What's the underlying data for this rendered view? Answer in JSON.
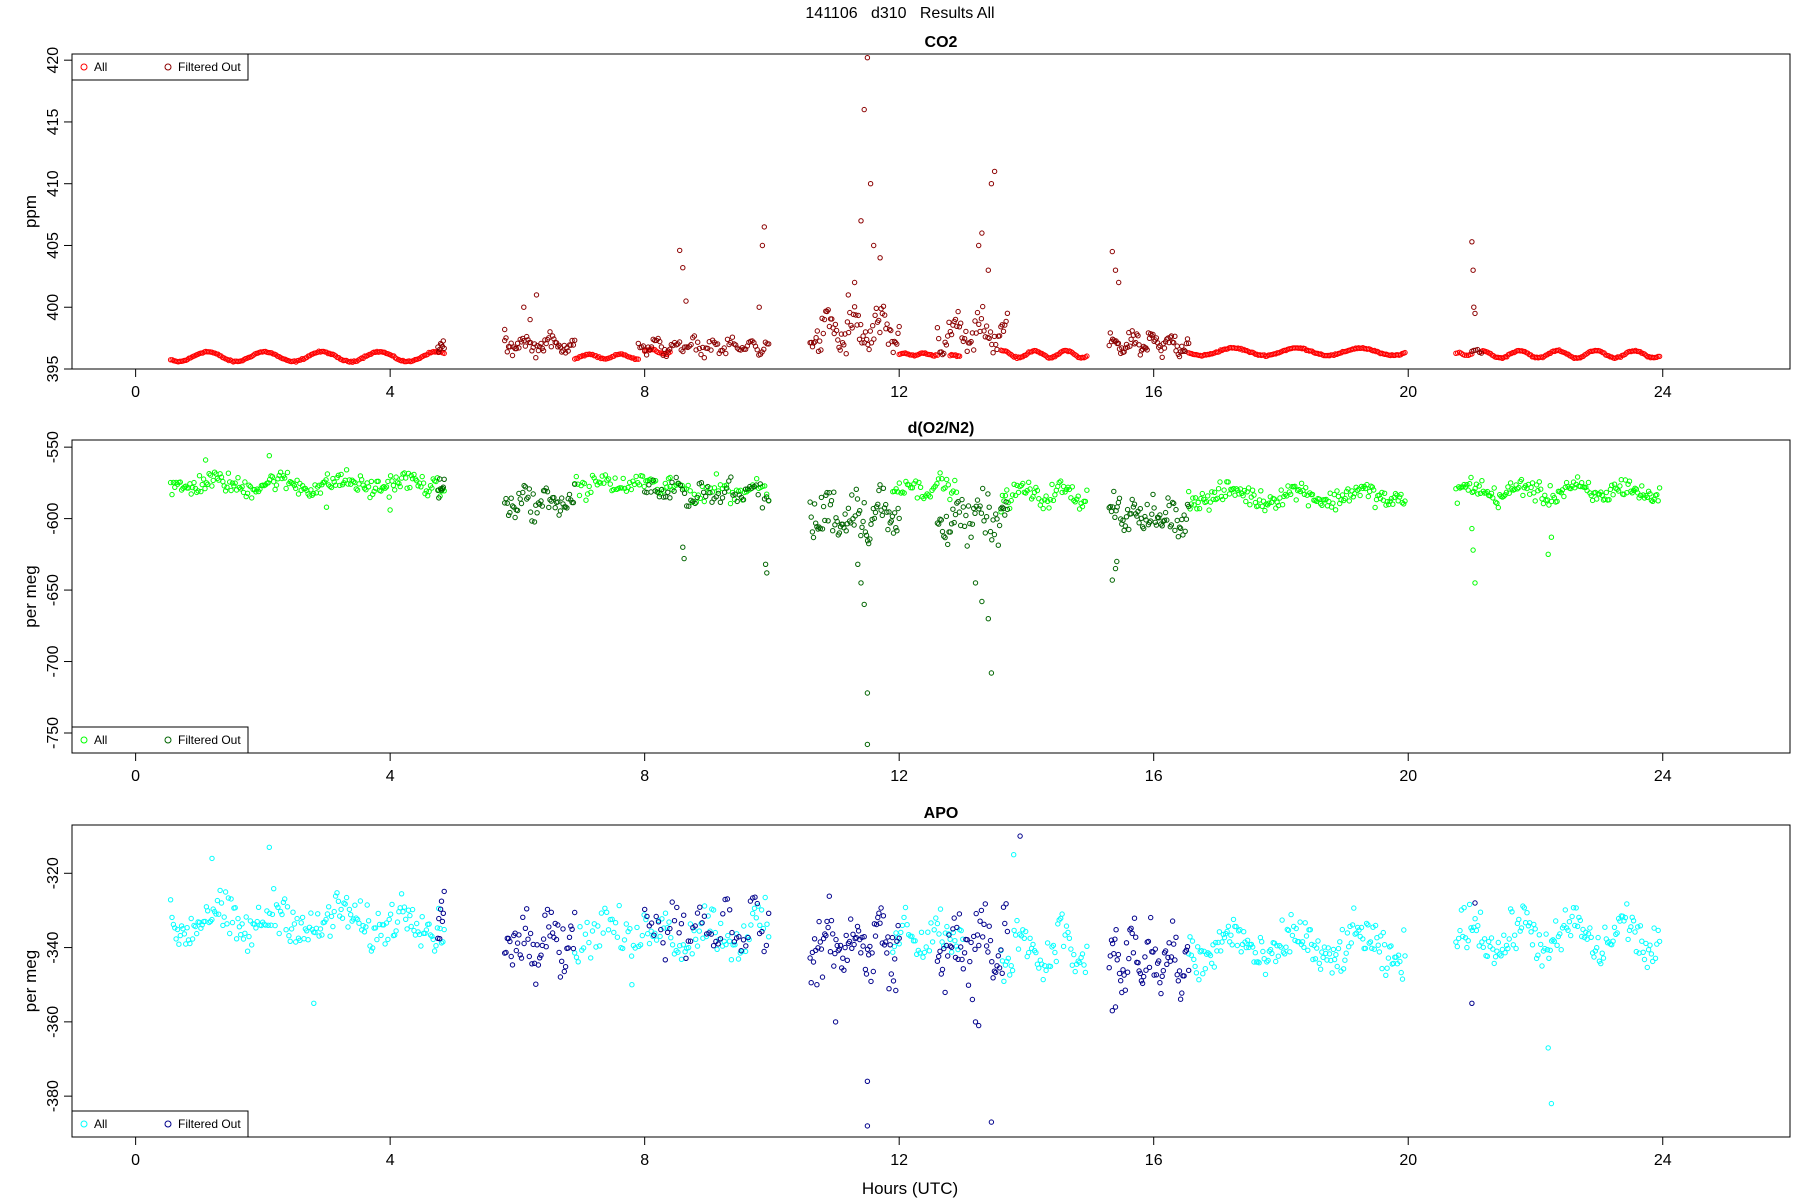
{
  "page_title": "141106   d310   Results All",
  "x_axis_label": "Hours (UTC)",
  "chart_data": [
    {
      "type": "scatter",
      "title": "CO2",
      "xlabel": "",
      "ylabel": "ppm",
      "xlim": [
        -1,
        26
      ],
      "ylim": [
        395,
        420.5
      ],
      "xticks": [
        0,
        4,
        8,
        12,
        16,
        20,
        24
      ],
      "yticks": [
        395,
        400,
        405,
        410,
        415,
        420
      ],
      "legend_position": "top-left",
      "legend": [
        "All",
        "Filtered Out"
      ],
      "series": [
        {
          "name": "All",
          "color": "#ff0000",
          "segments": [
            {
              "x0": 0.55,
              "x1": 4.85,
              "n": 180,
              "base": 396.0,
              "amp": 0.4,
              "noise": 0.05,
              "period": 0.9
            },
            {
              "x0": 6.9,
              "x1": 7.9,
              "n": 40,
              "base": 396.0,
              "amp": 0.2,
              "noise": 0.05,
              "period": 0.5
            },
            {
              "x0": 8.0,
              "x1": 8.4,
              "n": 16,
              "base": 396.4,
              "amp": 0.2,
              "noise": 0.05,
              "period": 0.4
            },
            {
              "x0": 12.0,
              "x1": 12.6,
              "n": 26,
              "base": 396.2,
              "amp": 0.1,
              "noise": 0.05,
              "period": 0.3
            },
            {
              "x0": 12.8,
              "x1": 12.95,
              "n": 8,
              "base": 396.1,
              "amp": 0.05,
              "noise": 0.05,
              "period": 0.2
            },
            {
              "x0": 13.6,
              "x1": 14.95,
              "n": 60,
              "base": 396.2,
              "amp": 0.3,
              "noise": 0.05,
              "period": 0.5
            },
            {
              "x0": 16.55,
              "x1": 19.95,
              "n": 150,
              "base": 396.4,
              "amp": 0.3,
              "noise": 0.05,
              "period": 1.0
            },
            {
              "x0": 20.75,
              "x1": 21.0,
              "n": 10,
              "base": 396.2,
              "amp": 0.1,
              "noise": 0.05,
              "period": 0.3
            },
            {
              "x0": 21.15,
              "x1": 23.95,
              "n": 120,
              "base": 396.2,
              "amp": 0.3,
              "noise": 0.05,
              "period": 0.6
            }
          ]
        },
        {
          "name": "Filtered Out",
          "color": "#8b0000",
          "segments": [
            {
              "x0": 4.75,
              "x1": 4.85,
              "n": 8,
              "base": 396.8,
              "amp": 0.2,
              "noise": 0.4,
              "period": 0.2
            },
            {
              "x0": 5.8,
              "x1": 6.9,
              "n": 55,
              "base": 397.0,
              "amp": 0.4,
              "noise": 0.5,
              "period": 0.4
            },
            {
              "x0": 7.9,
              "x1": 9.95,
              "n": 80,
              "base": 396.8,
              "amp": 0.4,
              "noise": 0.4,
              "period": 0.3
            },
            {
              "x0": 10.6,
              "x1": 12.0,
              "n": 75,
              "base": 398.0,
              "amp": 1.0,
              "noise": 1.2,
              "period": 0.4
            },
            {
              "x0": 12.6,
              "x1": 13.7,
              "n": 55,
              "base": 397.8,
              "amp": 1.0,
              "noise": 1.0,
              "period": 0.4
            },
            {
              "x0": 15.3,
              "x1": 16.55,
              "n": 70,
              "base": 397.0,
              "amp": 0.5,
              "noise": 0.6,
              "period": 0.3
            },
            {
              "x0": 21.0,
              "x1": 21.15,
              "n": 6,
              "base": 396.5,
              "amp": 0.2,
              "noise": 0.3,
              "period": 0.2
            }
          ],
          "points": [
            [
              5.8,
              398.2
            ],
            [
              6.1,
              400.0
            ],
            [
              6.2,
              399.0
            ],
            [
              6.3,
              401.0
            ],
            [
              8.55,
              404.6
            ],
            [
              8.6,
              403.2
            ],
            [
              8.65,
              400.5
            ],
            [
              9.85,
              405.0
            ],
            [
              9.88,
              406.5
            ],
            [
              9.8,
              400.0
            ],
            [
              11.4,
              407.0
            ],
            [
              11.45,
              416.0
            ],
            [
              11.5,
              420.2
            ],
            [
              11.55,
              410.0
            ],
            [
              11.6,
              405.0
            ],
            [
              11.7,
              404.0
            ],
            [
              11.3,
              402.0
            ],
            [
              11.2,
              401.0
            ],
            [
              13.5,
              411.0
            ],
            [
              13.45,
              410.0
            ],
            [
              13.3,
              406.0
            ],
            [
              13.25,
              405.0
            ],
            [
              13.4,
              403.0
            ],
            [
              15.35,
              404.5
            ],
            [
              15.4,
              403.0
            ],
            [
              15.45,
              402.0
            ],
            [
              21.0,
              405.3
            ],
            [
              21.02,
              403.0
            ],
            [
              21.03,
              400.0
            ],
            [
              21.05,
              399.5
            ]
          ]
        }
      ]
    },
    {
      "type": "scatter",
      "title": "d(O2/N2)",
      "xlabel": "",
      "ylabel": "per meg",
      "xlim": [
        -1,
        26
      ],
      "ylim": [
        -764,
        -545
      ],
      "xticks": [
        0,
        4,
        8,
        12,
        16,
        20,
        24
      ],
      "yticks": [
        -550,
        -600,
        -650,
        -700,
        -750
      ],
      "legend_position": "bottom-left",
      "legend": [
        "All",
        "Filtered Out"
      ],
      "series": [
        {
          "name": "All",
          "color": "#00ff00",
          "segments": [
            {
              "x0": 0.55,
              "x1": 4.85,
              "n": 200,
              "base": -576,
              "amp": 3,
              "noise": 6,
              "period": 1.0
            },
            {
              "x0": 6.9,
              "x1": 8.4,
              "n": 60,
              "base": -576,
              "amp": 3,
              "noise": 6,
              "period": 0.6
            },
            {
              "x0": 8.4,
              "x1": 9.95,
              "n": 50,
              "base": -580,
              "amp": 3,
              "noise": 6,
              "period": 0.6
            },
            {
              "x0": 11.9,
              "x1": 12.9,
              "n": 40,
              "base": -578,
              "amp": 3,
              "noise": 6,
              "period": 0.5
            },
            {
              "x0": 13.6,
              "x1": 14.95,
              "n": 60,
              "base": -583,
              "amp": 4,
              "noise": 6,
              "period": 0.6
            },
            {
              "x0": 16.55,
              "x1": 19.95,
              "n": 160,
              "base": -584,
              "amp": 4,
              "noise": 6,
              "period": 1.0
            },
            {
              "x0": 20.75,
              "x1": 23.95,
              "n": 150,
              "base": -581,
              "amp": 4,
              "noise": 6,
              "period": 0.8
            }
          ],
          "points": [
            [
              2.1,
              -556
            ],
            [
              1.1,
              -559
            ],
            [
              3.0,
              -592
            ],
            [
              4.0,
              -594
            ],
            [
              21.0,
              -607
            ],
            [
              21.02,
              -622
            ],
            [
              21.05,
              -645
            ],
            [
              22.2,
              -625
            ],
            [
              22.25,
              -613
            ]
          ]
        },
        {
          "name": "Filtered Out",
          "color": "#006400",
          "segments": [
            {
              "x0": 4.75,
              "x1": 4.85,
              "n": 8,
              "base": -578,
              "amp": 3,
              "noise": 6,
              "period": 0.2
            },
            {
              "x0": 5.8,
              "x1": 6.9,
              "n": 55,
              "base": -588,
              "amp": 5,
              "noise": 8,
              "period": 0.4
            },
            {
              "x0": 8.0,
              "x1": 9.95,
              "n": 60,
              "base": -582,
              "amp": 5,
              "noise": 6,
              "period": 0.4
            },
            {
              "x0": 10.6,
              "x1": 12.0,
              "n": 80,
              "base": -597,
              "amp": 8,
              "noise": 14,
              "period": 0.4
            },
            {
              "x0": 12.6,
              "x1": 13.7,
              "n": 55,
              "base": -600,
              "amp": 8,
              "noise": 12,
              "period": 0.4
            },
            {
              "x0": 15.3,
              "x1": 16.55,
              "n": 70,
              "base": -598,
              "amp": 6,
              "noise": 10,
              "period": 0.3
            }
          ],
          "points": [
            [
              8.6,
              -620
            ],
            [
              8.62,
              -628
            ],
            [
              9.9,
              -632
            ],
            [
              9.92,
              -638
            ],
            [
              11.5,
              -722
            ],
            [
              11.5,
              -758
            ],
            [
              11.45,
              -660
            ],
            [
              11.4,
              -645
            ],
            [
              11.35,
              -632
            ],
            [
              13.45,
              -708
            ],
            [
              13.4,
              -670
            ],
            [
              13.3,
              -658
            ],
            [
              13.2,
              -645
            ],
            [
              15.35,
              -643
            ],
            [
              15.4,
              -635
            ],
            [
              15.42,
              -630
            ]
          ]
        }
      ]
    },
    {
      "type": "scatter",
      "title": "APO",
      "xlabel": "Hours (UTC)",
      "ylabel": "per meg",
      "xlim": [
        -1,
        26
      ],
      "ylim": [
        -391,
        -307
      ],
      "xticks": [
        0,
        4,
        8,
        12,
        16,
        20,
        24
      ],
      "yticks": [
        -320,
        -340,
        -360,
        -380
      ],
      "legend_position": "bottom-left",
      "legend": [
        "All",
        "Filtered Out"
      ],
      "series": [
        {
          "name": "All",
          "color": "#00ffff",
          "segments": [
            {
              "x0": 0.55,
              "x1": 4.85,
              "n": 200,
              "base": -333,
              "amp": 3,
              "noise": 5,
              "period": 1.0
            },
            {
              "x0": 6.9,
              "x1": 9.95,
              "n": 110,
              "base": -336,
              "amp": 3,
              "noise": 5,
              "period": 0.8
            },
            {
              "x0": 11.9,
              "x1": 13.0,
              "n": 45,
              "base": -337,
              "amp": 3,
              "noise": 5,
              "period": 0.5
            },
            {
              "x0": 13.6,
              "x1": 14.95,
              "n": 60,
              "base": -340,
              "amp": 5,
              "noise": 5,
              "period": 0.6
            },
            {
              "x0": 16.55,
              "x1": 19.95,
              "n": 170,
              "base": -340,
              "amp": 4,
              "noise": 5,
              "period": 1.0
            },
            {
              "x0": 20.75,
              "x1": 23.95,
              "n": 150,
              "base": -337,
              "amp": 4,
              "noise": 5,
              "period": 0.8
            }
          ],
          "points": [
            [
              1.2,
              -316
            ],
            [
              2.1,
              -313
            ],
            [
              2.8,
              -355
            ],
            [
              22.2,
              -367
            ],
            [
              22.25,
              -382
            ],
            [
              13.8,
              -315
            ],
            [
              7.8,
              -350
            ]
          ]
        },
        {
          "name": "Filtered Out",
          "color": "#00008b",
          "segments": [
            {
              "x0": 4.75,
              "x1": 4.85,
              "n": 8,
              "base": -333,
              "amp": 3,
              "noise": 4,
              "period": 0.2
            },
            {
              "x0": 5.8,
              "x1": 6.9,
              "n": 55,
              "base": -338,
              "amp": 4,
              "noise": 6,
              "period": 0.4
            },
            {
              "x0": 8.0,
              "x1": 9.95,
              "n": 55,
              "base": -334,
              "amp": 4,
              "noise": 5,
              "period": 0.4
            },
            {
              "x0": 10.6,
              "x1": 12.0,
              "n": 80,
              "base": -339,
              "amp": 5,
              "noise": 7,
              "period": 0.4
            },
            {
              "x0": 12.6,
              "x1": 13.7,
              "n": 55,
              "base": -340,
              "amp": 6,
              "noise": 8,
              "period": 0.4
            },
            {
              "x0": 15.3,
              "x1": 16.55,
              "n": 70,
              "base": -343,
              "amp": 5,
              "noise": 6,
              "period": 0.3
            }
          ],
          "points": [
            [
              11.5,
              -376
            ],
            [
              11.5,
              -388
            ],
            [
              11.0,
              -360
            ],
            [
              13.45,
              -387
            ],
            [
              13.2,
              -360
            ],
            [
              13.25,
              -361
            ],
            [
              13.9,
              -310
            ],
            [
              15.35,
              -357
            ],
            [
              15.4,
              -356
            ],
            [
              21.0,
              -355
            ],
            [
              21.05,
              -328
            ]
          ]
        }
      ]
    }
  ]
}
